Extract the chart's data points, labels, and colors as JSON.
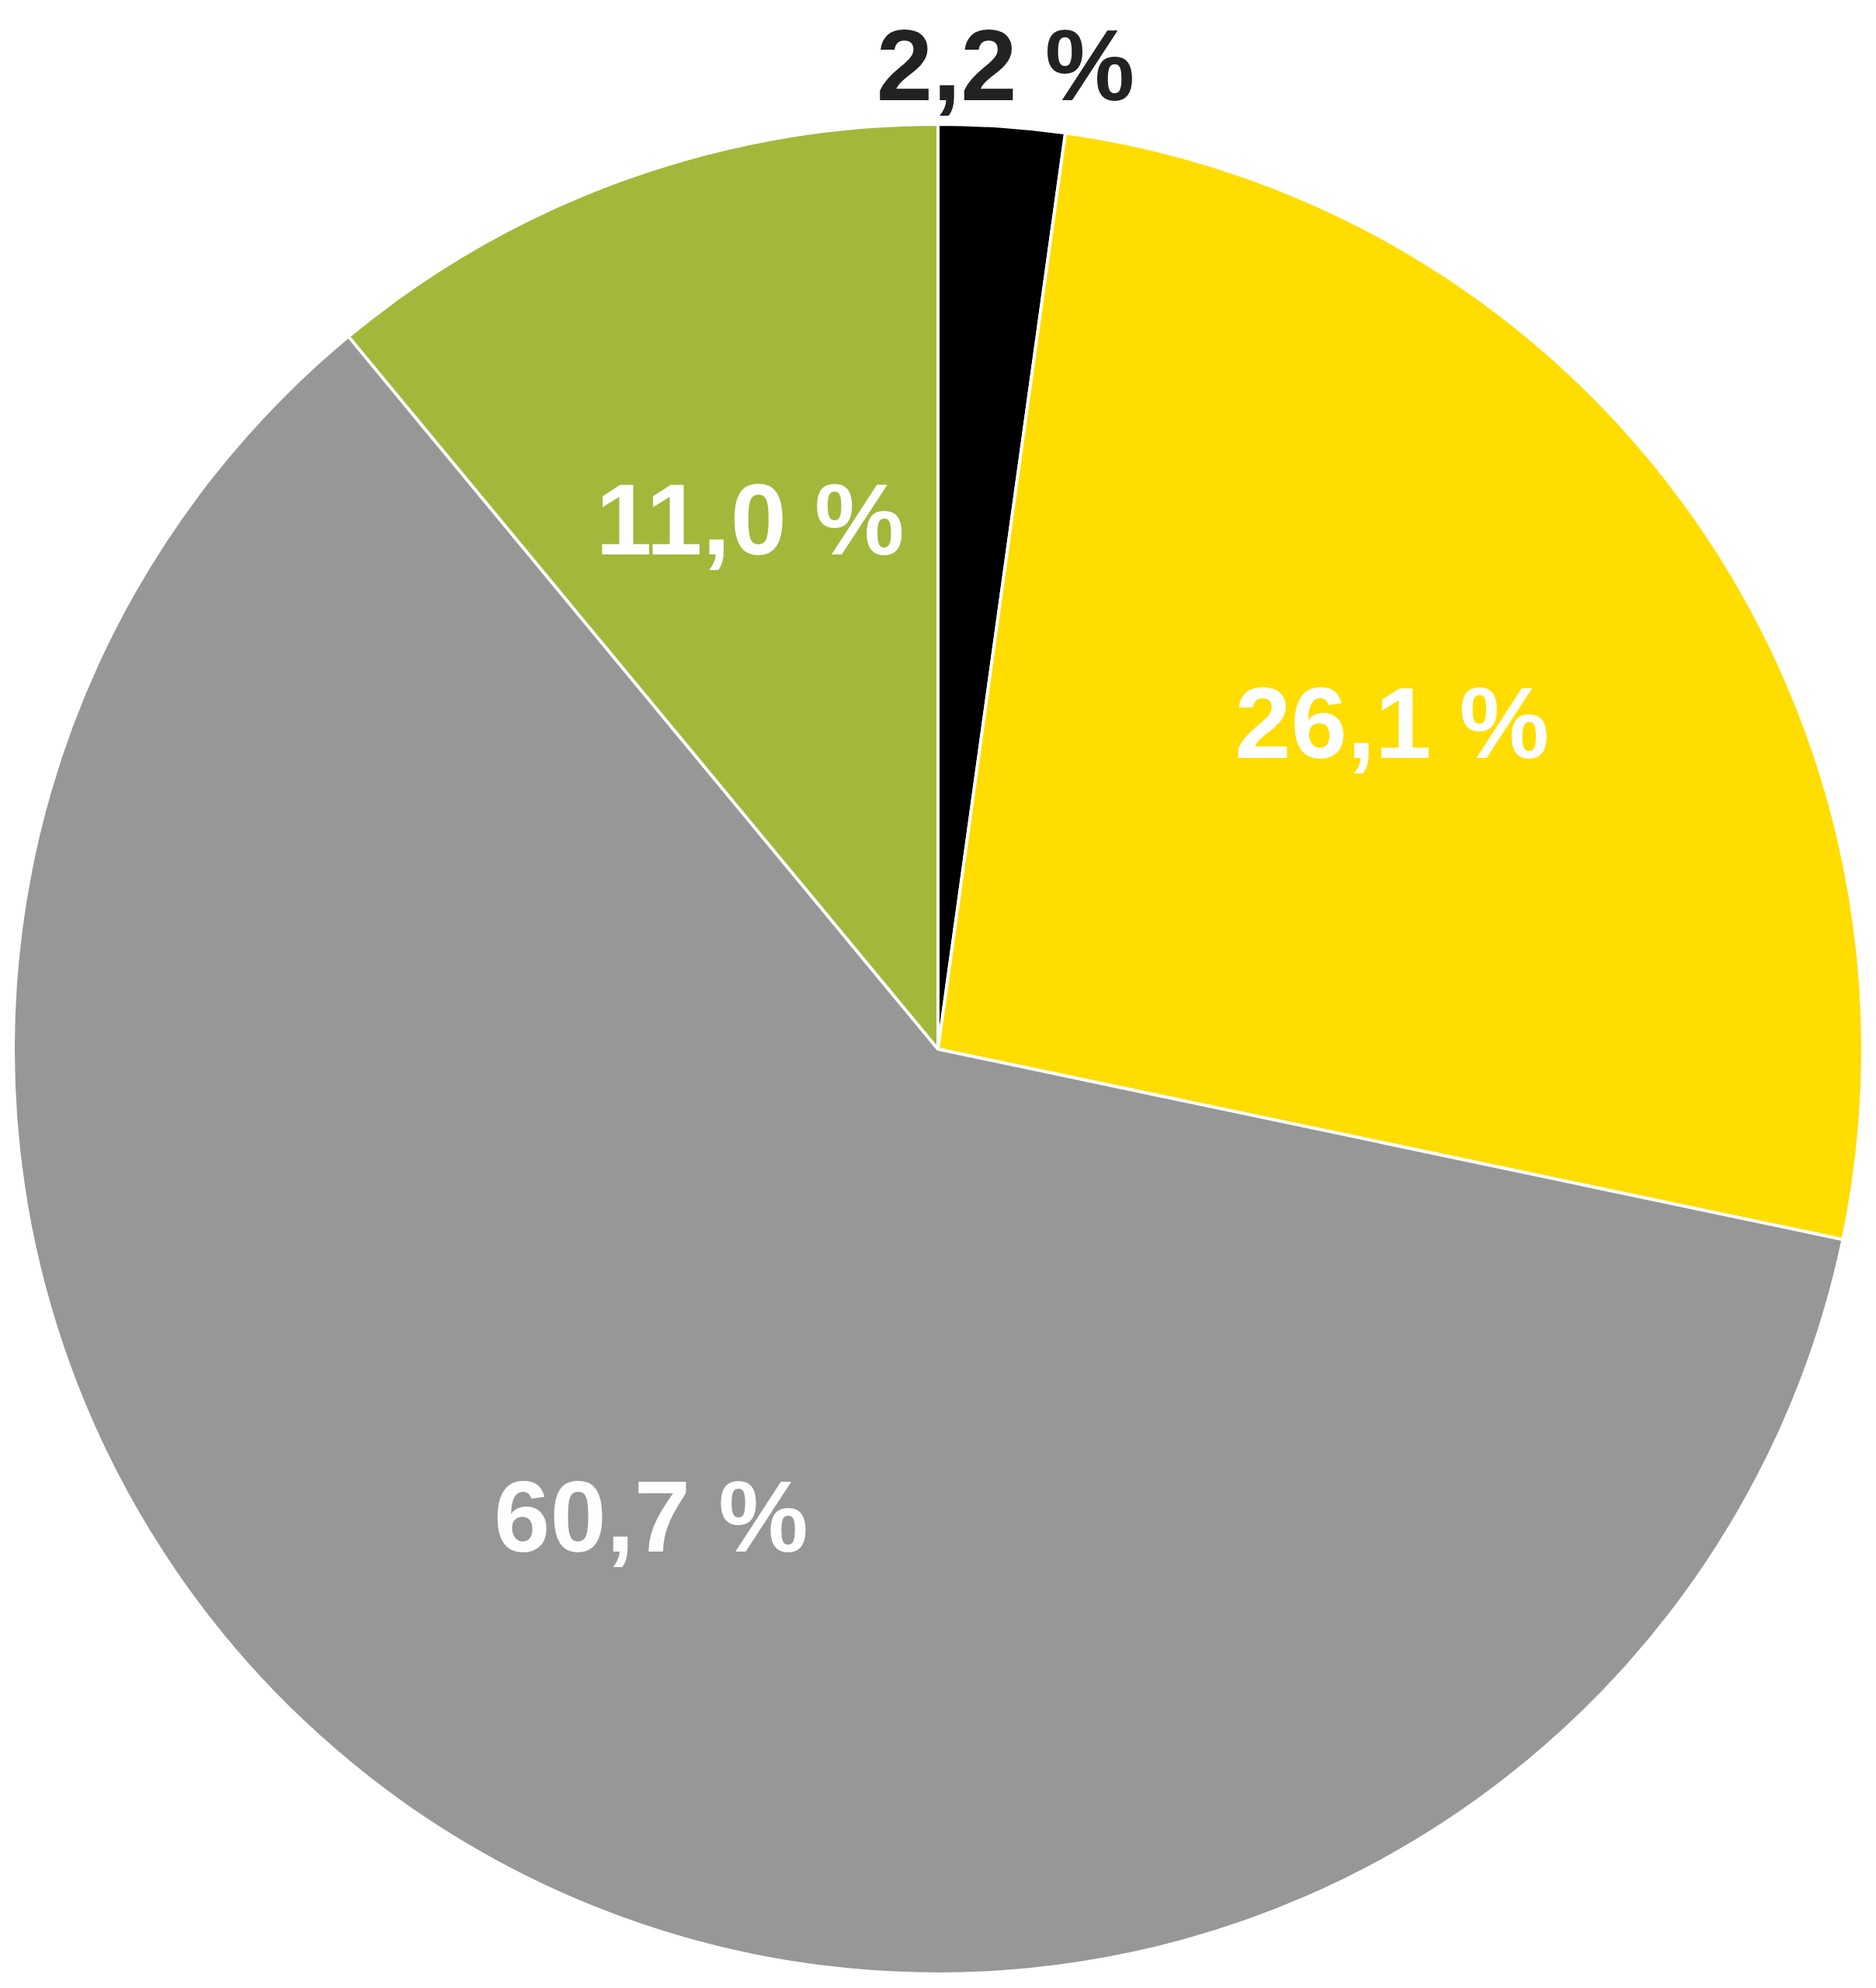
{
  "chart_data": {
    "type": "pie",
    "categories": [
      null,
      null,
      null,
      null
    ],
    "values": [
      2.2,
      26.1,
      60.7,
      11.0
    ],
    "colors": [
      "#000000",
      "#ffdd00",
      "#979797",
      "#a2b83b"
    ],
    "value_labels": [
      "2,2 %",
      "26,1 %",
      "60,7 %",
      "11,0 %"
    ]
  }
}
